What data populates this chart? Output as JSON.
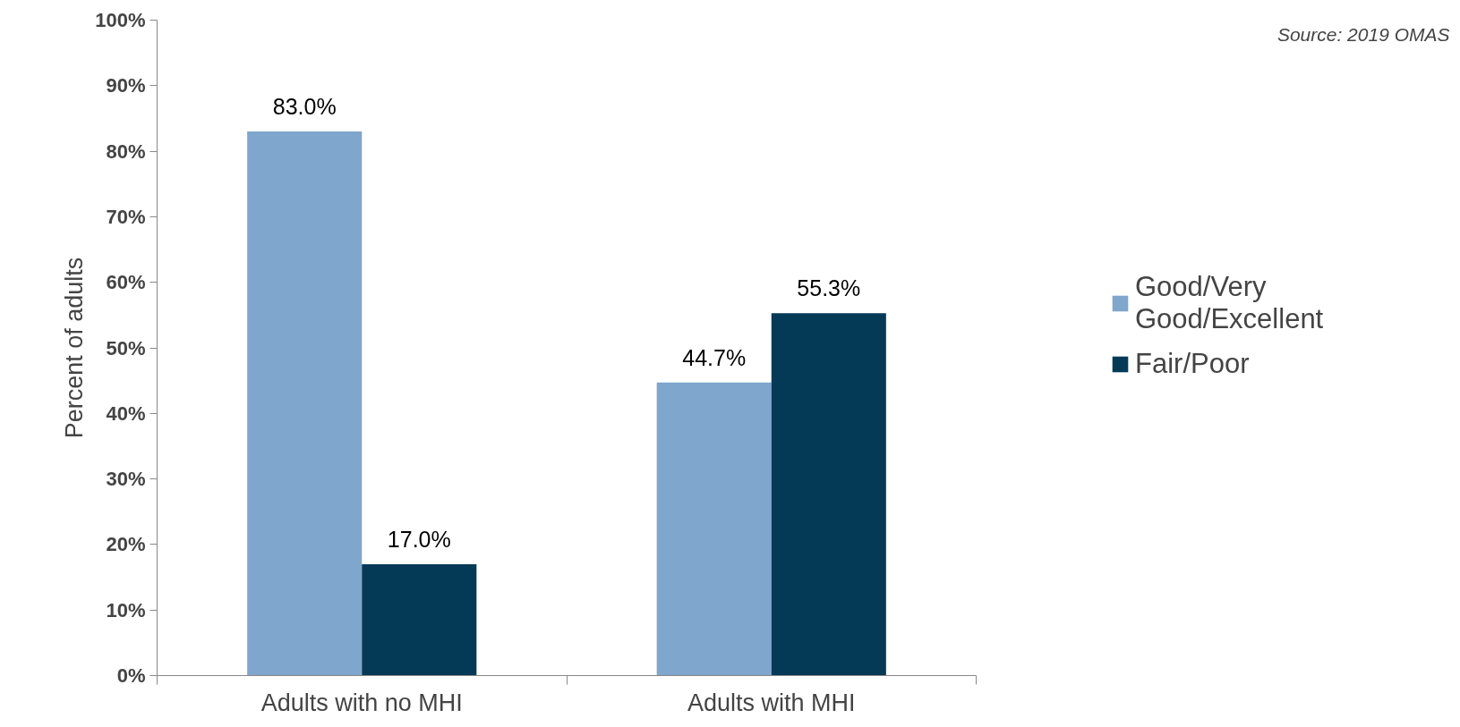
{
  "chart_data": {
    "type": "bar",
    "ylabel": "Percent of adults",
    "categories": [
      "Adults with no MHI",
      "Adults with MHI"
    ],
    "series": [
      {
        "name": "Good/Very Good/Excellent",
        "color": "#7fa6cc",
        "values": [
          83.0,
          44.7
        ],
        "value_labels": [
          "83.0%",
          "44.7%"
        ]
      },
      {
        "name": "Fair/Poor",
        "color": "#053a57",
        "values": [
          17.0,
          55.3
        ],
        "value_labels": [
          "17.0%",
          "55.3%"
        ]
      }
    ],
    "ylim": [
      0,
      100
    ],
    "yticks": [
      {
        "value": 0,
        "label": "0%"
      },
      {
        "value": 10,
        "label": "10%"
      },
      {
        "value": 20,
        "label": "20%"
      },
      {
        "value": 30,
        "label": "30%"
      },
      {
        "value": 40,
        "label": "40%"
      },
      {
        "value": 50,
        "label": "50%"
      },
      {
        "value": 60,
        "label": "60%"
      },
      {
        "value": 70,
        "label": "70%"
      },
      {
        "value": 80,
        "label": "80%"
      },
      {
        "value": 90,
        "label": "90%"
      },
      {
        "value": 100,
        "label": "100%"
      }
    ],
    "annotations": [
      "Source: 2019 OMAS"
    ],
    "grid": false,
    "legend": "right"
  }
}
